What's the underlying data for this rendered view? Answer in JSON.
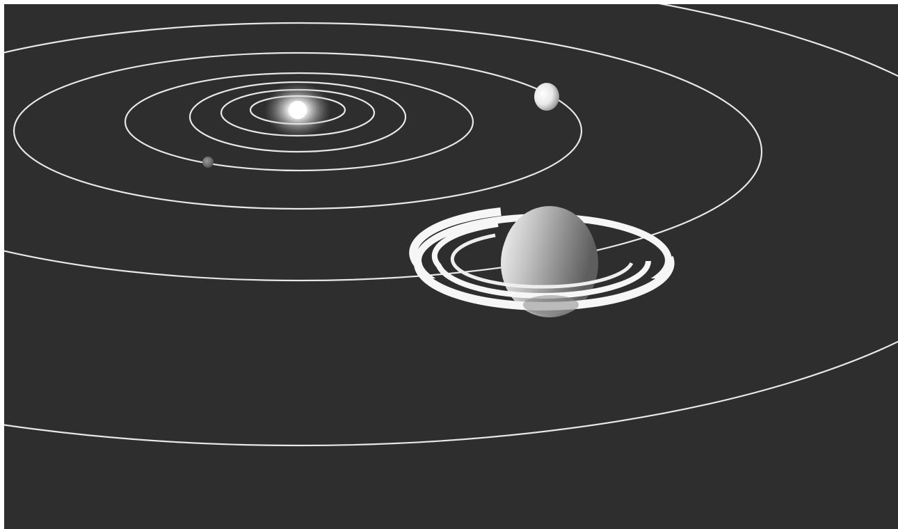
{
  "scene": {
    "subject": "solar-system",
    "colors": {
      "space": "#2e2e2e",
      "orbit": "#e8e8e8",
      "sun": "#ffffff",
      "planet_light": "#eeeeee",
      "planet_dark": "#4a4a4a",
      "ring": "#f6f6f6"
    },
    "bodies": [
      "sun-icon",
      "small-planet-icon",
      "white-planet-icon",
      "ringed-planet-icon"
    ]
  }
}
